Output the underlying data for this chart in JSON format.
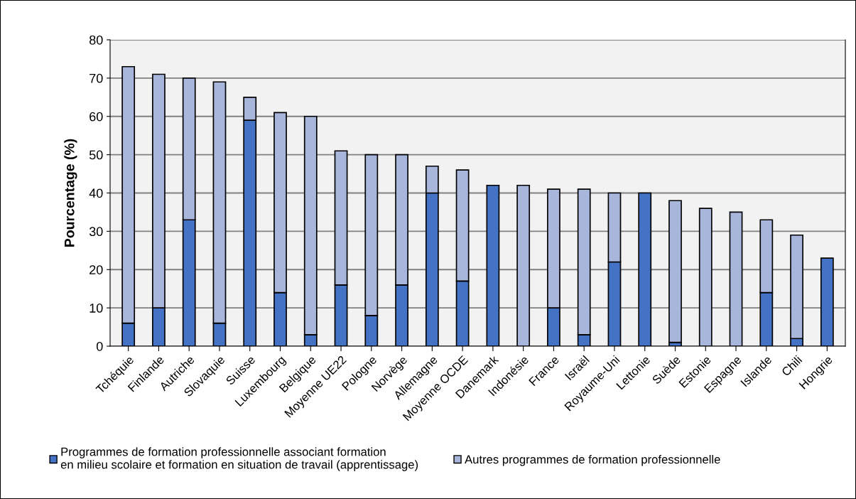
{
  "chart_data": {
    "type": "bar",
    "stacked": true,
    "ylabel": "Pourcentage (%)",
    "categories": [
      "Tchéquie",
      "Finlande",
      "Autriche",
      "Slovaquie",
      "Suisse",
      "Luxembourg",
      "Belgique",
      "Moyenne UE22",
      "Pologne",
      "Norvège",
      "Allemagne",
      "Moyenne OCDE",
      "Danemark",
      "Indonésie",
      "France",
      "Israël",
      "Royaume-Uni",
      "Lettonie",
      "Suède",
      "Estonie",
      "Espagne",
      "Islande",
      "Chili",
      "Hongrie"
    ],
    "series": [
      {
        "name": "Programmes de formation professionnelle associant formation\nen milieu scolaire et formation en situation de travail (apprentissage)",
        "color": "#4472c4",
        "values": [
          6,
          10,
          33,
          6,
          59,
          14,
          3,
          16,
          8,
          16,
          40,
          17,
          42,
          null,
          10,
          3,
          22,
          40,
          1,
          null,
          null,
          14,
          2,
          23
        ]
      },
      {
        "name": "Autres programmes de formation professionnelle",
        "color": "#a9b6db",
        "values": [
          67,
          61,
          37,
          63,
          6,
          47,
          57,
          35,
          42,
          34,
          7,
          29,
          null,
          42,
          31,
          38,
          18,
          null,
          37,
          36,
          35,
          19,
          27,
          null
        ]
      }
    ],
    "ylim": [
      0,
      80
    ],
    "yticks": [
      0,
      10,
      20,
      30,
      40,
      50,
      60,
      70,
      80
    ],
    "grid": "y",
    "legend": "bottom"
  }
}
